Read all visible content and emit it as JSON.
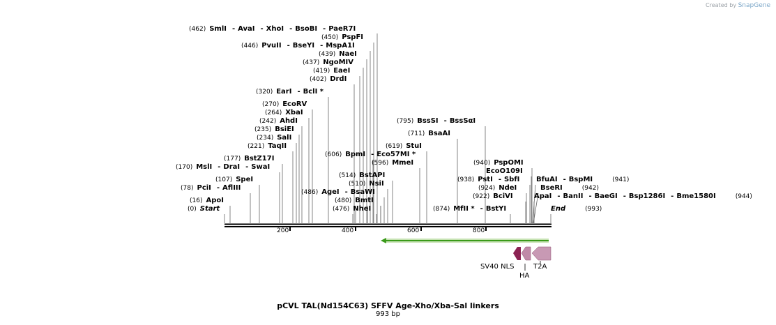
{
  "credit": {
    "prefix": "Created by",
    "brand": "SnapGene"
  },
  "title": "pCVL TAL(Nd154C63) SFFV Age-Xho/Xba-Sal linkers",
  "length_label": "993 bp",
  "ticks": [
    "200",
    "400",
    "600",
    "800"
  ],
  "labels": {
    "l0": {
      "pos": "(462)",
      "names": [
        "SmlI",
        "AvaI",
        "XhoI",
        "BsoBI",
        "PaeR7I"
      ]
    },
    "l1": {
      "pos": "(450)",
      "names": [
        "PspFI"
      ]
    },
    "l2": {
      "pos": "(446)",
      "names": [
        "PvuII",
        "BseYI",
        "MspA1I"
      ]
    },
    "l3": {
      "pos": "(439)",
      "names": [
        "NaeI"
      ]
    },
    "l4": {
      "pos": "(437)",
      "names": [
        "NgoMIV"
      ]
    },
    "l5": {
      "pos": "(419)",
      "names": [
        "EaeI"
      ]
    },
    "l6": {
      "pos": "(402)",
      "names": [
        "DrdI"
      ]
    },
    "l7": {
      "pos": "(320)",
      "names": [
        "EarI",
        "BclI *"
      ]
    },
    "l8": {
      "pos": "(270)",
      "names": [
        "EcoRV"
      ]
    },
    "l9": {
      "pos": "(264)",
      "names": [
        "XbaI"
      ]
    },
    "l10": {
      "pos": "(242)",
      "names": [
        "AhdI"
      ]
    },
    "l11": {
      "pos": "(235)",
      "names": [
        "BsiEI"
      ]
    },
    "l12": {
      "pos": "(234)",
      "names": [
        "SalI"
      ]
    },
    "l13": {
      "pos": "(221)",
      "names": [
        "TaqII"
      ]
    },
    "l14": {
      "pos": "(177)",
      "names": [
        "BstZ17I"
      ]
    },
    "l15": {
      "pos": "(170)",
      "names": [
        "MslI",
        "DraI",
        "SwaI"
      ]
    },
    "l16": {
      "pos": "(107)",
      "names": [
        "SpeI"
      ]
    },
    "l17": {
      "pos": "(78)",
      "names": [
        "PciI",
        "AflIII"
      ]
    },
    "l18": {
      "pos": "(16)",
      "names": [
        "ApoI"
      ]
    },
    "l19": {
      "pos": "(0)",
      "names": [
        "Start"
      ]
    },
    "l20": {
      "pos": "(606)",
      "names": [
        "BpmI",
        "Eco57MI *"
      ]
    },
    "l21": {
      "pos": "(619)",
      "names": [
        "StuI"
      ]
    },
    "l22": {
      "pos": "(596)",
      "names": [
        "MmeI"
      ]
    },
    "l23": {
      "pos": "(514)",
      "names": [
        "BstAPI"
      ]
    },
    "l24": {
      "pos": "(510)",
      "names": [
        "NsiI"
      ]
    },
    "l25": {
      "pos": "(486)",
      "names": [
        "AgeI",
        "BsaWI"
      ]
    },
    "l26": {
      "pos": "(480)",
      "names": [
        "BmtI"
      ]
    },
    "l27": {
      "pos": "(476)",
      "names": [
        "NheI"
      ]
    },
    "l28": {
      "pos": "(795)",
      "names": [
        "BssSI",
        "BssSαI"
      ]
    },
    "l29": {
      "pos": "(711)",
      "names": [
        "BsaAI"
      ]
    },
    "l30": {
      "pos": "(940)",
      "names": [
        "PspOMI"
      ]
    },
    "l31": {
      "pos": "",
      "names": [
        "EcoO109I"
      ]
    },
    "l32": {
      "pos": "(938)",
      "names": [
        "PstI",
        "SbfI"
      ]
    },
    "l33": {
      "pos": "(924)",
      "names": [
        "NdeI"
      ]
    },
    "l34": {
      "pos": "(922)",
      "names": [
        "BciVI"
      ]
    },
    "l35": {
      "pos": "(874)",
      "names": [
        "MfII *",
        "BstYI"
      ]
    },
    "l36": {
      "pos": "",
      "names": [
        "BfuAI",
        "BspMI"
      ],
      "end": "(941)"
    },
    "l37": {
      "pos": "",
      "names": [
        "BseRI"
      ],
      "end": "(942)"
    },
    "l38": {
      "pos": "",
      "names": [
        "ApaI",
        "BanII",
        "BaeGI",
        "Bsp1286I",
        "Bme1580I"
      ],
      "end": "(944)"
    },
    "l39": {
      "pos": "",
      "names": [
        "End"
      ],
      "end": "(993)"
    }
  },
  "features": {
    "sv40": "SV40 NLS",
    "ha": "HA",
    "t2a": "T2A"
  },
  "colors": {
    "arrow": "#3a9a1a",
    "sv40": "#8b2252",
    "ha": "#c08aa8",
    "t2a": "#c899b4"
  }
}
